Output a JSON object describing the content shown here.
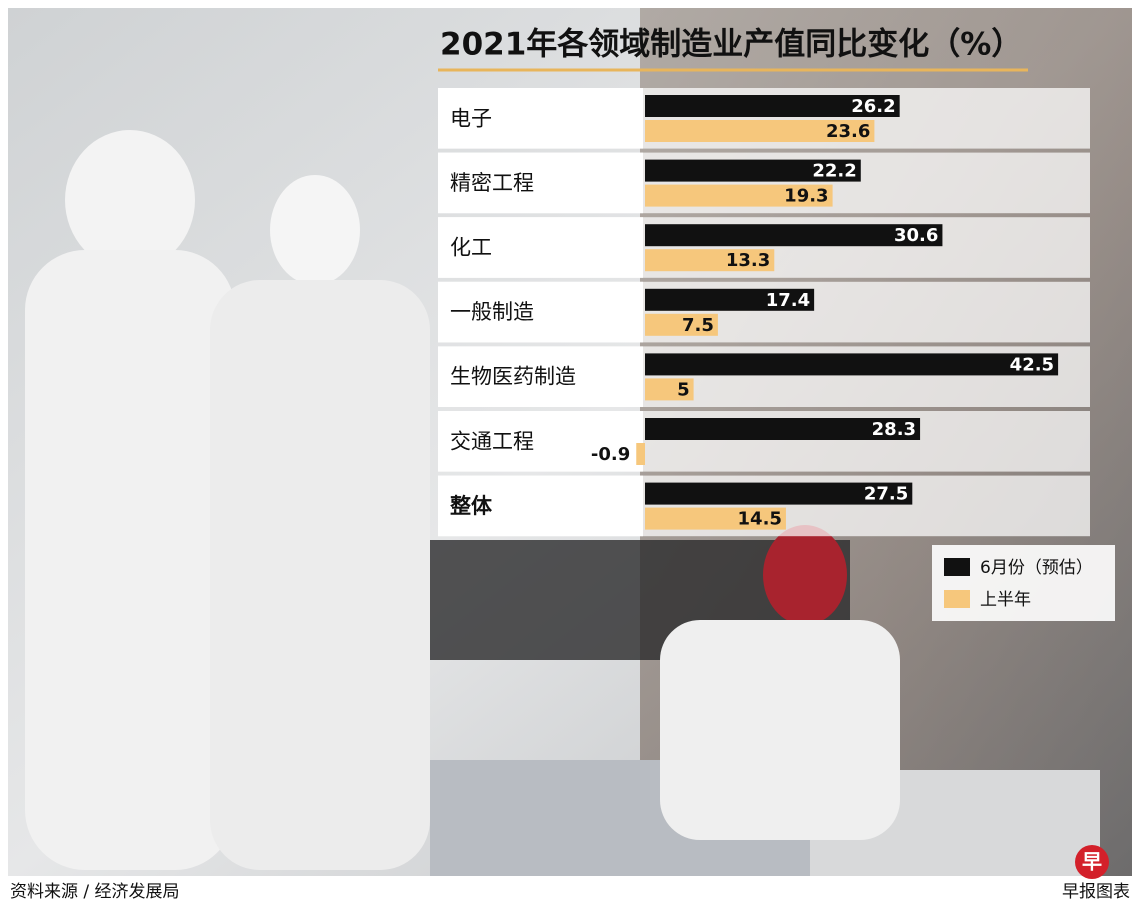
{
  "chart_data": {
    "type": "bar",
    "orientation": "horizontal",
    "title": "2021年各领域制造业产值同比变化（%）",
    "categories": [
      "电子",
      "精密工程",
      "化工",
      "一般制造",
      "生物医药制造",
      "交通工程",
      "整体"
    ],
    "series": [
      {
        "name": "6月份（预估）",
        "color": "#111111",
        "values": [
          26.2,
          22.2,
          30.6,
          17.4,
          42.5,
          28.3,
          27.5
        ]
      },
      {
        "name": "上半年",
        "color": "#f6c77c",
        "values": [
          23.6,
          19.3,
          13.3,
          7.5,
          5,
          -0.9,
          14.5
        ]
      }
    ],
    "legend": "lower right",
    "source": "资料来源 / 经济发展局",
    "credit": "早报图表",
    "logo": "早"
  }
}
